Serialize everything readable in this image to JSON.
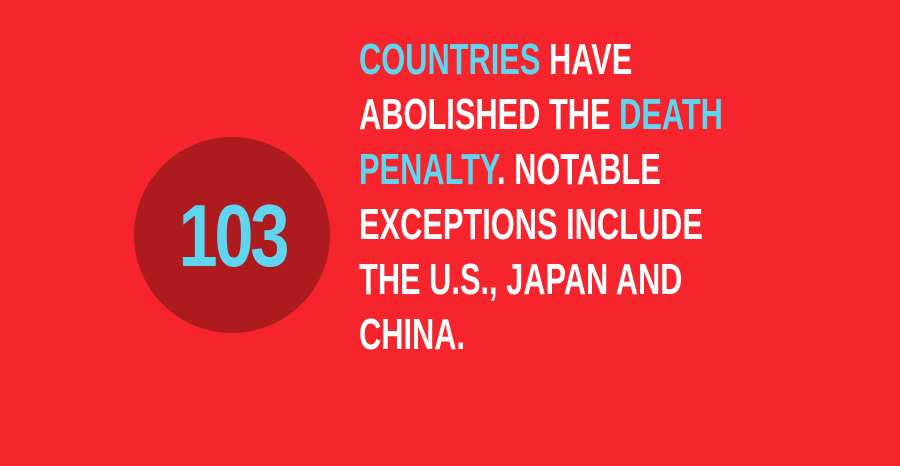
{
  "colors": {
    "background": "#f5242d",
    "circle": "#ad1b1f",
    "accent": "#5ed6f0",
    "text": "#ffffff"
  },
  "badge": {
    "number": "103"
  },
  "fact": {
    "lines": [
      [
        {
          "text": "COUNTRIES",
          "highlight": true
        },
        {
          "text": " HAVE",
          "highlight": false
        }
      ],
      [
        {
          "text": "ABOLISHED THE ",
          "highlight": false
        },
        {
          "text": "DEATH",
          "highlight": true
        }
      ],
      [
        {
          "text": "PENALTY",
          "highlight": true
        },
        {
          "text": ". NOTABLE",
          "highlight": false
        }
      ],
      [
        {
          "text": "EXCEPTIONS INCLUDE",
          "highlight": false
        }
      ],
      [
        {
          "text": "THE U.S., JAPAN AND",
          "highlight": false
        }
      ],
      [
        {
          "text": "CHINA.",
          "highlight": false
        }
      ]
    ]
  }
}
